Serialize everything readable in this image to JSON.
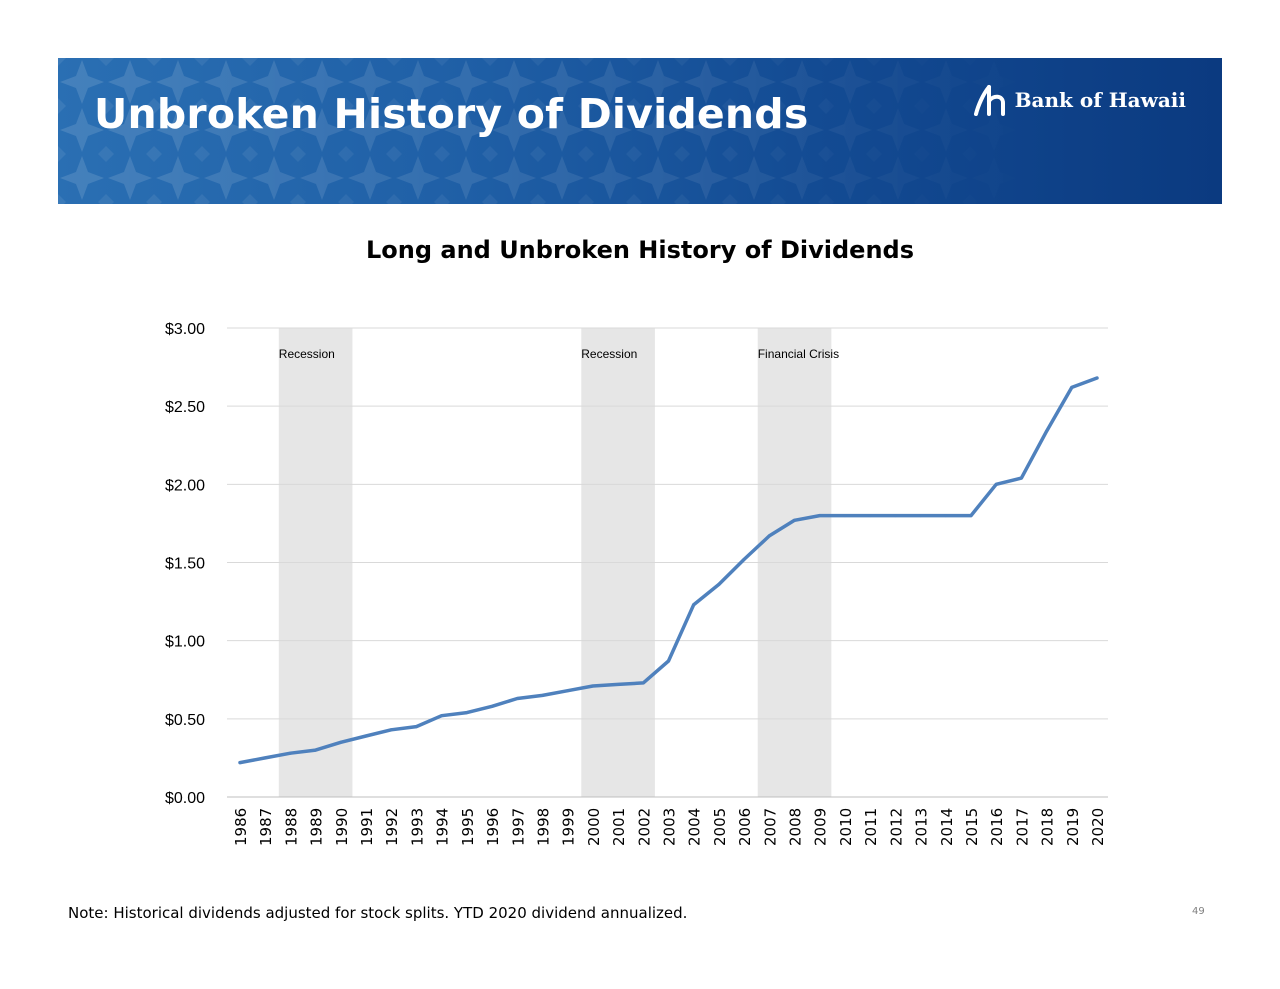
{
  "header": {
    "title": "Unbroken History of Dividends",
    "logo_text": "Bank of Hawaii"
  },
  "colors": {
    "banner": "#1f5fa6",
    "line": "#4f81bd",
    "recession_band": "#e6e6e6",
    "grid": "#d9d9d9"
  },
  "chart_data": {
    "type": "line",
    "title": "Long and Unbroken History of Dividends",
    "xlabel": "",
    "ylabel": "",
    "ylim": [
      0,
      3
    ],
    "yticks": [
      "$0.00",
      "$0.50",
      "$1.00",
      "$1.50",
      "$2.00",
      "$2.50",
      "$3.00"
    ],
    "grid": true,
    "x": [
      "1986",
      "1987",
      "1988",
      "1989",
      "1990",
      "1991",
      "1992",
      "1993",
      "1994",
      "1995",
      "1996",
      "1997",
      "1998",
      "1999",
      "2000",
      "2001",
      "2002",
      "2003",
      "2004",
      "2005",
      "2006",
      "2007",
      "2008",
      "2009",
      "2010",
      "2011",
      "2012",
      "2013",
      "2014",
      "2015",
      "2016",
      "2017",
      "2018",
      "2019",
      "2020"
    ],
    "series": [
      {
        "values": [
          0.22,
          0.25,
          0.28,
          0.3,
          0.35,
          0.39,
          0.43,
          0.45,
          0.52,
          0.54,
          0.58,
          0.63,
          0.65,
          0.68,
          0.71,
          0.72,
          0.73,
          0.87,
          1.23,
          1.36,
          1.52,
          1.67,
          1.77,
          1.8,
          1.8,
          1.8,
          1.8,
          1.8,
          1.8,
          1.8,
          2.0,
          2.04,
          2.34,
          2.62,
          2.68
        ]
      }
    ],
    "bands": [
      {
        "label": "Recession",
        "start": "1988",
        "end": "1990"
      },
      {
        "label": "Recession",
        "start": "2000",
        "end": "2002"
      },
      {
        "label": "Financial Crisis",
        "start": "2007",
        "end": "2009"
      }
    ]
  },
  "footer": {
    "note": "Note: Historical dividends adjusted for stock splits.  YTD 2020 dividend annualized.",
    "page": "49"
  }
}
